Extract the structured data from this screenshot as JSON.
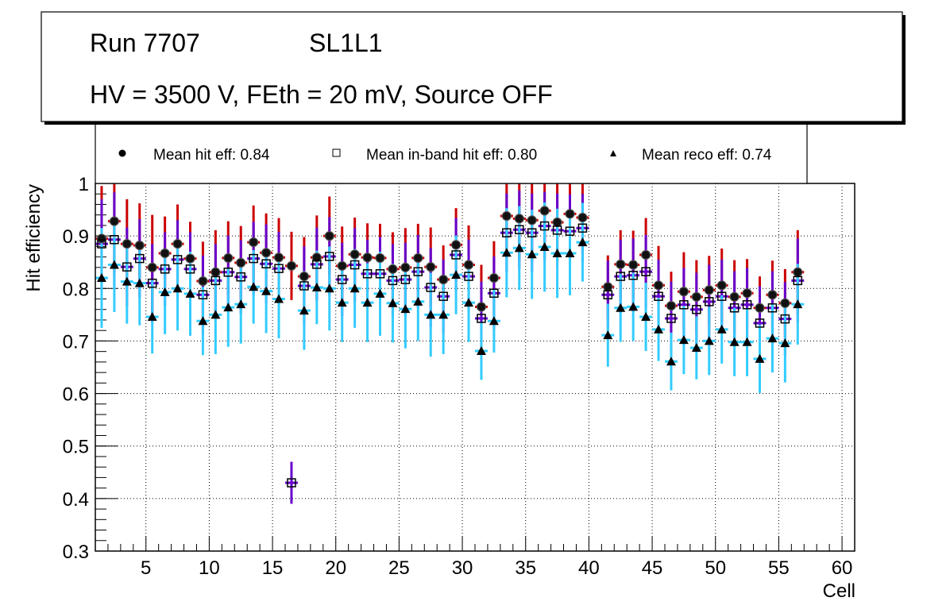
{
  "title_box": {
    "line1_left": "Run 7707",
    "line1_right": "SL1L1",
    "line2": "HV = 3500 V, FEth = 20 mV, Source OFF"
  },
  "legend": {
    "items": [
      {
        "label": "Mean hit  eff: 0.84",
        "marker": "filled-circle"
      },
      {
        "label": "Mean in-band hit eff: 0.80",
        "marker": "open-square"
      },
      {
        "label": "Mean reco eff: 0.74",
        "marker": "filled-triangle"
      }
    ]
  },
  "colors": {
    "hit_error": "#cc0000",
    "inband_error": "#6600cc",
    "reco_error": "#33ccff",
    "marker": "#000000",
    "grid": "#000000"
  },
  "chart_data": {
    "type": "scatter",
    "title": "",
    "xlabel": "Cell",
    "ylabel": "Hit efficiency",
    "xlim": [
      1,
      61
    ],
    "ylim": [
      0.3,
      1.0
    ],
    "xticks": [
      5,
      10,
      15,
      20,
      25,
      30,
      35,
      40,
      45,
      50,
      55,
      60
    ],
    "yticks": [
      0.3,
      0.4,
      0.5,
      0.6,
      0.7,
      0.8,
      0.9,
      1.0
    ],
    "ytick_labels": [
      "0.3",
      "0.4",
      "0.5",
      "0.6",
      "0.7",
      "0.8",
      "0.9",
      "1"
    ],
    "grid": true,
    "legend_position": "top",
    "x": [
      1,
      2,
      3,
      4,
      5,
      6,
      7,
      8,
      9,
      10,
      11,
      12,
      13,
      14,
      15,
      16,
      17,
      18,
      19,
      20,
      21,
      22,
      23,
      24,
      25,
      26,
      27,
      28,
      29,
      30,
      31,
      32,
      33,
      34,
      35,
      36,
      37,
      38,
      39,
      41,
      42,
      43,
      44,
      45,
      46,
      47,
      48,
      49,
      50,
      51,
      52,
      53,
      54,
      55,
      56
    ],
    "series": [
      {
        "name": "Mean hit  eff: 0.84",
        "marker": "filled-circle",
        "values": [
          0.895,
          0.928,
          0.885,
          0.882,
          0.84,
          0.867,
          0.885,
          0.857,
          0.814,
          0.831,
          0.858,
          0.849,
          0.888,
          0.868,
          0.859,
          0.843,
          0.823,
          0.859,
          0.9,
          0.843,
          0.865,
          0.859,
          0.858,
          0.837,
          0.84,
          0.858,
          0.841,
          0.817,
          0.883,
          0.845,
          0.765,
          0.82,
          0.938,
          0.933,
          0.93,
          0.948,
          0.926,
          0.942,
          0.935,
          0.803,
          0.846,
          0.845,
          0.864,
          0.806,
          0.767,
          0.794,
          0.784,
          0.797,
          0.806,
          0.784,
          0.791,
          0.763,
          0.788,
          0.772,
          0.831
        ],
        "errors": [
          0.1,
          0.1,
          0.085,
          0.08,
          0.1,
          0.07,
          0.075,
          0.07,
          0.075,
          0.08,
          0.07,
          0.07,
          0.07,
          0.075,
          0.075,
          0.065,
          0.075,
          0.08,
          0.075,
          0.075,
          0.07,
          0.065,
          0.065,
          0.07,
          0.075,
          0.065,
          0.075,
          0.065,
          0.07,
          0.075,
          0.08,
          0.07,
          0.08,
          0.08,
          0.08,
          0.06,
          0.075,
          0.07,
          0.07,
          0.06,
          0.065,
          0.065,
          0.07,
          0.075,
          0.065,
          0.075,
          0.07,
          0.065,
          0.07,
          0.07,
          0.065,
          0.06,
          0.065,
          0.065,
          0.08
        ]
      },
      {
        "name": "Mean in-band hit eff: 0.80",
        "marker": "open-square",
        "values": [
          0.885,
          0.893,
          0.841,
          0.857,
          0.81,
          0.837,
          0.855,
          0.837,
          0.788,
          0.815,
          0.831,
          0.822,
          0.857,
          0.847,
          0.838,
          0.43,
          0.805,
          0.846,
          0.861,
          0.817,
          0.845,
          0.828,
          0.828,
          0.815,
          0.817,
          0.832,
          0.802,
          0.785,
          0.864,
          0.823,
          0.743,
          0.791,
          0.906,
          0.912,
          0.906,
          0.919,
          0.911,
          0.909,
          0.915,
          0.788,
          0.823,
          0.825,
          0.832,
          0.785,
          0.743,
          0.769,
          0.76,
          0.775,
          0.785,
          0.763,
          0.769,
          0.734,
          0.763,
          0.742,
          0.815
        ],
        "errors": [
          0.085,
          0.09,
          0.075,
          0.075,
          0.075,
          0.07,
          0.075,
          0.07,
          0.075,
          0.07,
          0.07,
          0.07,
          0.07,
          0.075,
          0.07,
          0.04,
          0.075,
          0.07,
          0.075,
          0.07,
          0.07,
          0.065,
          0.07,
          0.07,
          0.07,
          0.07,
          0.075,
          0.07,
          0.07,
          0.07,
          0.07,
          0.07,
          0.075,
          0.075,
          0.075,
          0.065,
          0.07,
          0.07,
          0.065,
          0.065,
          0.07,
          0.07,
          0.07,
          0.07,
          0.07,
          0.07,
          0.07,
          0.07,
          0.07,
          0.07,
          0.07,
          0.07,
          0.07,
          0.07,
          0.08
        ]
      },
      {
        "name": "Mean reco eff: 0.74",
        "marker": "filled-triangle",
        "values": [
          0.82,
          0.845,
          0.813,
          0.81,
          0.746,
          0.793,
          0.8,
          0.79,
          0.738,
          0.75,
          0.764,
          0.77,
          0.803,
          0.795,
          0.78,
          null,
          0.758,
          0.802,
          0.8,
          0.773,
          0.8,
          0.773,
          0.79,
          0.772,
          0.761,
          0.775,
          0.75,
          0.75,
          0.826,
          0.773,
          0.681,
          0.738,
          0.868,
          0.877,
          0.865,
          0.879,
          0.867,
          0.867,
          0.888,
          0.711,
          0.763,
          0.765,
          0.746,
          0.722,
          0.661,
          0.702,
          0.687,
          0.7,
          0.722,
          0.698,
          0.698,
          0.666,
          0.705,
          0.696,
          0.77
        ],
        "errors": [
          0.095,
          0.09,
          0.08,
          0.08,
          0.07,
          0.08,
          0.08,
          0.08,
          0.065,
          0.075,
          0.075,
          0.075,
          0.07,
          0.08,
          0.075,
          null,
          0.075,
          0.07,
          0.08,
          0.075,
          0.075,
          0.075,
          0.08,
          0.075,
          0.075,
          0.075,
          0.08,
          0.075,
          0.075,
          0.075,
          0.055,
          0.06,
          0.085,
          0.08,
          0.085,
          0.085,
          0.085,
          0.08,
          0.075,
          0.06,
          0.065,
          0.065,
          0.065,
          0.06,
          0.055,
          0.065,
          0.06,
          0.065,
          0.065,
          0.065,
          0.065,
          0.065,
          0.065,
          0.075,
          0.077
        ]
      }
    ]
  }
}
